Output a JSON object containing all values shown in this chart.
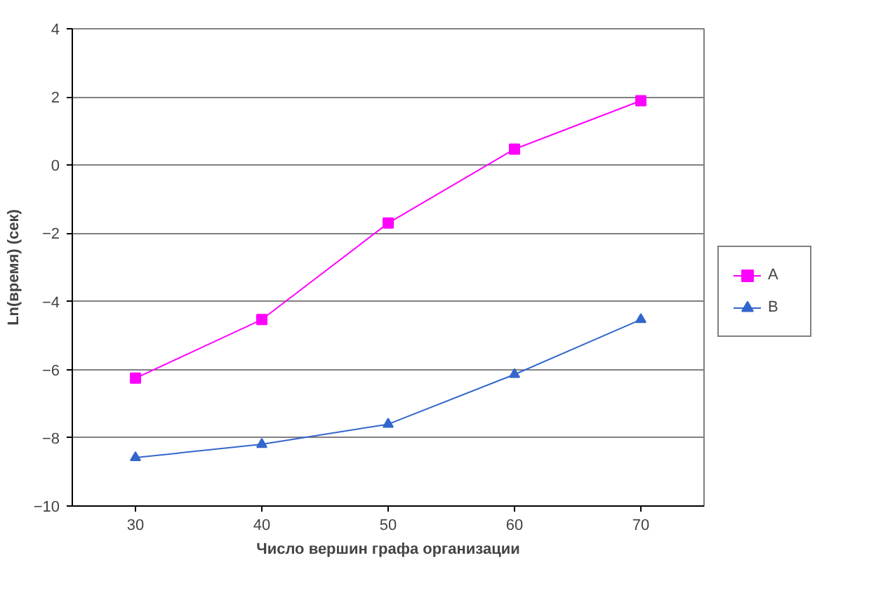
{
  "chart_data": {
    "type": "line",
    "xlabel": "Число вершин графа организации",
    "ylabel": "Ln(время) (сек)",
    "categories": [
      "30",
      "40",
      "50",
      "60",
      "70"
    ],
    "series": [
      {
        "name": "A",
        "color": "#ff00ff",
        "marker": "square",
        "values": [
          -6.25,
          -4.53,
          -1.7,
          0.47,
          1.89
        ]
      },
      {
        "name": "B",
        "color": "#3366cc",
        "marker": "triangle",
        "values": [
          -8.58,
          -8.19,
          -7.6,
          -6.14,
          -4.53
        ]
      }
    ],
    "ylim": [
      -10,
      4
    ],
    "yticks": [
      -10,
      -8,
      -6,
      -4,
      -2,
      0,
      2,
      4
    ],
    "grid": "y",
    "legend": "right"
  }
}
